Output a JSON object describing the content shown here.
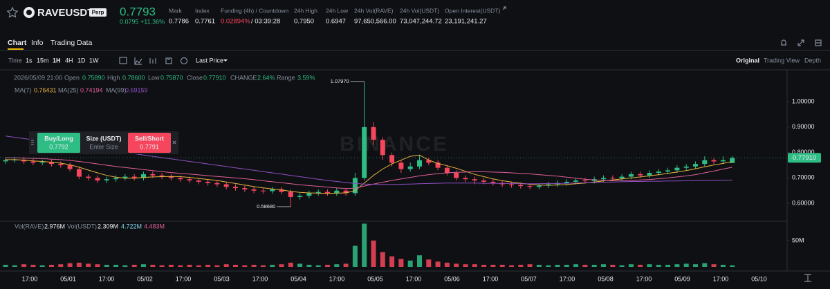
{
  "header": {
    "symbol": "RAVEUSDT",
    "badge": "Perp",
    "last_price": "0.7793",
    "change": "0.0795 +11.36%",
    "stats": [
      {
        "label": "Mark",
        "value": "0.7786"
      },
      {
        "label": "Index",
        "value": "0.7761"
      },
      {
        "label": "Funding (4h) / Countdown",
        "value": "0.02894%",
        "extra": "/ 03:39:28"
      },
      {
        "label": "24h High",
        "value": "0.7950"
      },
      {
        "label": "24h Low",
        "value": "0.6947"
      },
      {
        "label": "24h Vol(RAVE)",
        "value": "97,650,566.00"
      },
      {
        "label": "24h Vol(USDT)",
        "value": "73,047,244.72"
      },
      {
        "label": "Open Interest(USDT)",
        "value": "23,191,241.27"
      }
    ]
  },
  "tabs": [
    "Chart",
    "Info",
    "Trading Data"
  ],
  "toolbar": {
    "intervals": [
      "Time",
      "1s",
      "15m",
      "1H",
      "4H",
      "1D",
      "1W"
    ],
    "price_type": "Last Price",
    "views": [
      "Original",
      "Trading View",
      "Depth"
    ]
  },
  "trade_widget": {
    "buy": "Buy/Long",
    "buy_price": "0.7792",
    "size": "Size (USDT)",
    "size_placeholder": "Enter Size",
    "sell": "Sell/Short",
    "sell_price": "0.7791"
  },
  "chart_data": {
    "type": "candlestick",
    "watermark": "BINANCE",
    "up_color": "#2ebd85",
    "down_color": "#f6465d",
    "info": {
      "datetime": "2026/05/09 21:00",
      "items": [
        {
          "label": "Open",
          "value": "0.75890"
        },
        {
          "label": "High",
          "value": "0.78600"
        },
        {
          "label": "Low",
          "value": "0.75870"
        },
        {
          "label": "Close",
          "value": "0.77910"
        },
        {
          "label": "CHANGE",
          "value": "2.64%"
        },
        {
          "label": "Range",
          "value": "3.59%"
        }
      ]
    },
    "high_label": "1.07970",
    "low_label": "0.58680",
    "open": [
      0.765,
      0.77,
      0.772,
      0.765,
      0.76,
      0.762,
      0.755,
      0.75,
      0.735,
      0.705,
      0.7,
      0.69,
      0.695,
      0.7,
      0.705,
      0.7,
      0.715,
      0.71,
      0.705,
      0.7,
      0.695,
      0.69,
      0.685,
      0.68,
      0.675,
      0.665,
      0.66,
      0.655,
      0.65,
      0.648,
      0.655,
      0.645,
      0.625,
      0.63,
      0.64,
      0.645,
      0.64,
      0.65,
      0.64,
      0.7,
      0.9,
      0.85,
      0.79,
      0.76,
      0.735,
      0.745,
      0.77,
      0.76,
      0.74,
      0.72,
      0.7,
      0.695,
      0.69,
      0.685,
      0.68,
      0.675,
      0.672,
      0.668,
      0.665,
      0.67,
      0.675,
      0.68,
      0.685,
      0.69,
      0.688,
      0.695,
      0.7,
      0.698,
      0.705,
      0.715,
      0.71,
      0.72,
      0.725,
      0.73,
      0.74,
      0.745,
      0.755,
      0.77,
      0.765,
      0.7589
    ],
    "high": [
      0.78,
      0.782,
      0.782,
      0.775,
      0.772,
      0.772,
      0.765,
      0.76,
      0.745,
      0.715,
      0.71,
      0.705,
      0.71,
      0.715,
      0.715,
      0.725,
      0.725,
      0.72,
      0.715,
      0.71,
      0.705,
      0.7,
      0.695,
      0.69,
      0.685,
      0.675,
      0.67,
      0.665,
      0.66,
      0.665,
      0.665,
      0.655,
      0.64,
      0.65,
      0.655,
      0.655,
      0.66,
      0.66,
      0.72,
      1.0797,
      0.92,
      0.86,
      0.8,
      0.77,
      0.76,
      0.79,
      0.78,
      0.77,
      0.75,
      0.73,
      0.71,
      0.705,
      0.7,
      0.695,
      0.69,
      0.685,
      0.682,
      0.678,
      0.68,
      0.685,
      0.69,
      0.695,
      0.7,
      0.7,
      0.705,
      0.71,
      0.71,
      0.715,
      0.725,
      0.725,
      0.73,
      0.735,
      0.74,
      0.75,
      0.755,
      0.765,
      0.785,
      0.78,
      0.785,
      0.786
    ],
    "low": [
      0.755,
      0.76,
      0.755,
      0.75,
      0.75,
      0.745,
      0.74,
      0.725,
      0.695,
      0.69,
      0.68,
      0.68,
      0.685,
      0.69,
      0.69,
      0.69,
      0.7,
      0.695,
      0.69,
      0.685,
      0.68,
      0.675,
      0.67,
      0.665,
      0.655,
      0.65,
      0.645,
      0.64,
      0.638,
      0.638,
      0.635,
      0.5868,
      0.615,
      0.62,
      0.63,
      0.63,
      0.63,
      0.63,
      0.63,
      0.69,
      0.83,
      0.77,
      0.745,
      0.72,
      0.725,
      0.735,
      0.75,
      0.73,
      0.71,
      0.69,
      0.685,
      0.675,
      0.675,
      0.67,
      0.665,
      0.662,
      0.658,
      0.655,
      0.655,
      0.66,
      0.665,
      0.67,
      0.675,
      0.678,
      0.678,
      0.685,
      0.688,
      0.688,
      0.695,
      0.7,
      0.7,
      0.71,
      0.715,
      0.72,
      0.73,
      0.735,
      0.745,
      0.755,
      0.755,
      0.7587
    ],
    "close": [
      0.77,
      0.772,
      0.765,
      0.76,
      0.762,
      0.755,
      0.75,
      0.735,
      0.705,
      0.7,
      0.69,
      0.695,
      0.7,
      0.705,
      0.7,
      0.715,
      0.71,
      0.705,
      0.7,
      0.695,
      0.69,
      0.685,
      0.68,
      0.675,
      0.665,
      0.66,
      0.655,
      0.65,
      0.648,
      0.655,
      0.645,
      0.625,
      0.63,
      0.64,
      0.645,
      0.64,
      0.65,
      0.64,
      0.7,
      0.9,
      0.85,
      0.79,
      0.76,
      0.735,
      0.745,
      0.77,
      0.76,
      0.74,
      0.72,
      0.7,
      0.695,
      0.69,
      0.685,
      0.68,
      0.675,
      0.672,
      0.668,
      0.665,
      0.67,
      0.675,
      0.68,
      0.685,
      0.69,
      0.688,
      0.695,
      0.7,
      0.698,
      0.705,
      0.715,
      0.71,
      0.72,
      0.725,
      0.73,
      0.74,
      0.745,
      0.755,
      0.77,
      0.765,
      0.77,
      0.7791
    ],
    "series": [
      {
        "name": "MA(7)",
        "color": "#e8b342",
        "value_label": "0.76431",
        "values": [
          0.772,
          0.772,
          0.77,
          0.767,
          0.765,
          0.762,
          0.758,
          0.752,
          0.742,
          0.731,
          0.72,
          0.71,
          0.703,
          0.699,
          0.699,
          0.702,
          0.704,
          0.705,
          0.706,
          0.705,
          0.702,
          0.698,
          0.694,
          0.69,
          0.684,
          0.678,
          0.672,
          0.666,
          0.661,
          0.657,
          0.653,
          0.647,
          0.643,
          0.641,
          0.64,
          0.639,
          0.64,
          0.641,
          0.65,
          0.68,
          0.71,
          0.735,
          0.755,
          0.77,
          0.785,
          0.79,
          0.77,
          0.757,
          0.748,
          0.738,
          0.726,
          0.714,
          0.705,
          0.696,
          0.689,
          0.684,
          0.679,
          0.675,
          0.672,
          0.671,
          0.672,
          0.674,
          0.677,
          0.68,
          0.684,
          0.688,
          0.692,
          0.696,
          0.7,
          0.704,
          0.708,
          0.713,
          0.718,
          0.723,
          0.729,
          0.736,
          0.744,
          0.751,
          0.757,
          0.76431
        ]
      },
      {
        "name": "MA(25)",
        "color": "#e0609a",
        "value_label": "0.74194",
        "values": [
          0.78,
          0.779,
          0.778,
          0.777,
          0.776,
          0.774,
          0.772,
          0.769,
          0.765,
          0.76,
          0.755,
          0.75,
          0.745,
          0.741,
          0.737,
          0.733,
          0.729,
          0.725,
          0.721,
          0.718,
          0.715,
          0.712,
          0.709,
          0.706,
          0.703,
          0.7,
          0.697,
          0.693,
          0.689,
          0.685,
          0.681,
          0.677,
          0.673,
          0.67,
          0.667,
          0.664,
          0.661,
          0.658,
          0.66,
          0.668,
          0.676,
          0.683,
          0.69,
          0.696,
          0.702,
          0.708,
          0.713,
          0.717,
          0.72,
          0.722,
          0.723,
          0.724,
          0.724,
          0.723,
          0.722,
          0.72,
          0.718,
          0.716,
          0.713,
          0.71,
          0.707,
          0.703,
          0.699,
          0.695,
          0.692,
          0.69,
          0.689,
          0.689,
          0.69,
          0.692,
          0.694,
          0.697,
          0.7,
          0.704,
          0.708,
          0.713,
          0.72,
          0.727,
          0.735,
          0.74194
        ]
      },
      {
        "name": "MA(99)",
        "color": "#8e4fc4",
        "value_label": "0.69159",
        "values": [
          0.865,
          0.86,
          0.855,
          0.85,
          0.845,
          0.84,
          0.835,
          0.83,
          0.825,
          0.82,
          0.815,
          0.81,
          0.805,
          0.8,
          0.795,
          0.79,
          0.785,
          0.78,
          0.775,
          0.77,
          0.765,
          0.76,
          0.755,
          0.75,
          0.745,
          0.74,
          0.735,
          0.73,
          0.725,
          0.72,
          0.715,
          0.71,
          0.705,
          0.7,
          0.695,
          0.69,
          0.686,
          0.682,
          0.678,
          0.676,
          0.675,
          0.674,
          0.674,
          0.675,
          0.676,
          0.677,
          0.678,
          0.679,
          0.68,
          0.68,
          0.68,
          0.68,
          0.679,
          0.679,
          0.678,
          0.678,
          0.677,
          0.677,
          0.677,
          0.678,
          0.678,
          0.679,
          0.68,
          0.681,
          0.682,
          0.683,
          0.684,
          0.685,
          0.686,
          0.686,
          0.687,
          0.687,
          0.688,
          0.688,
          0.689,
          0.689,
          0.69,
          0.69,
          0.691,
          0.69159
        ]
      }
    ],
    "ylim": [
      0.535,
      1.12
    ],
    "yticks": [
      {
        "value": 0.6,
        "label": "0.60000"
      },
      {
        "value": 0.7,
        "label": "0.70000"
      },
      {
        "value": 0.8,
        "label": "0.80000"
      },
      {
        "value": 0.9,
        "label": "0.90000"
      },
      {
        "value": 1,
        "label": "1.00000"
      }
    ],
    "grid": false,
    "volume": {
      "title": "Vol(RAVE)",
      "value_label": "2.976M",
      "usdt_title": "Vol(USDT)",
      "usdt_value": "2.309M",
      "ma_labels": [
        {
          "value": "4.722M",
          "color": "#7fd6ea"
        },
        {
          "value": "4.483M",
          "color": "#e0609a"
        }
      ],
      "ylim": [
        0,
        84000000
      ],
      "yticks": [
        {
          "value": 50000000,
          "label": "50M"
        }
      ],
      "values": [
        4000000,
        3000000,
        5000000,
        4000000,
        3000000,
        4000000,
        5000000,
        7000000,
        8000000,
        6000000,
        5000000,
        4000000,
        4000000,
        3000000,
        4000000,
        5000000,
        4000000,
        3000000,
        4000000,
        3000000,
        4000000,
        3000000,
        4000000,
        3000000,
        5000000,
        4000000,
        3000000,
        4000000,
        3000000,
        4000000,
        5000000,
        8000000,
        6000000,
        4000000,
        3000000,
        4000000,
        5000000,
        6000000,
        40000000,
        82000000,
        50000000,
        28000000,
        20000000,
        15000000,
        12000000,
        22000000,
        14000000,
        10000000,
        8000000,
        6000000,
        5000000,
        5000000,
        4000000,
        4000000,
        4000000,
        3000000,
        4000000,
        5000000,
        4000000,
        3000000,
        4000000,
        4000000,
        5000000,
        4000000,
        4000000,
        5000000,
        4000000,
        3000000,
        5000000,
        4000000,
        5000000,
        4000000,
        4000000,
        5000000,
        6000000,
        5000000,
        7000000,
        5000000,
        4000000,
        2976000
      ]
    },
    "xticks": [
      "17:00",
      "05/01",
      "17:00",
      "05/02",
      "17:00",
      "05/03",
      "17:00",
      "05/04",
      "17:00",
      "05/05",
      "17:00",
      "05/06",
      "17:00",
      "05/07",
      "17:00",
      "05/08",
      "17:00",
      "05/09",
      "17:00",
      "05/10"
    ]
  }
}
